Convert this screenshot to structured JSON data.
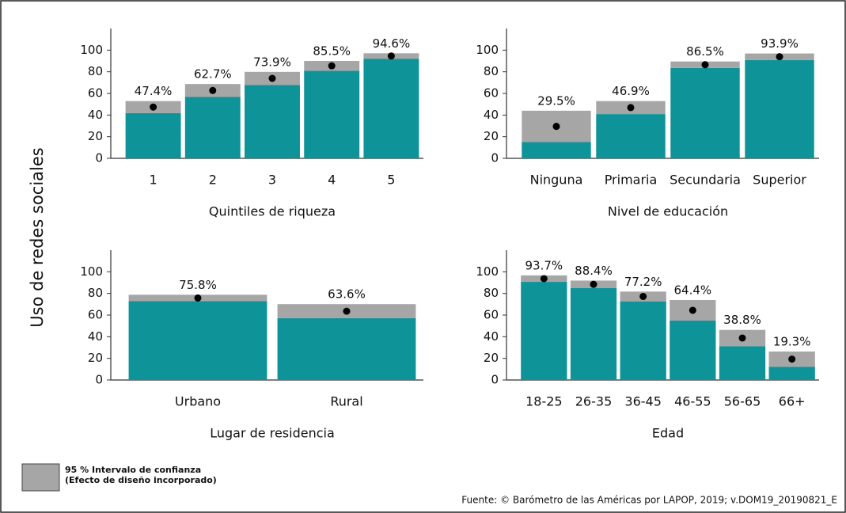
{
  "ylabel": "Uso de redes sociales",
  "legend": [
    "95 % Intervalo de confianza",
    "(Efecto de diseño incorporado)"
  ],
  "source": "Fuente: © Barómetro de las Américas por LAPOP, 2019; v.DOM19_20190821_E",
  "bar_color": "#0e9399",
  "interval_color": "#a6a6a6",
  "chart_data": [
    {
      "type": "bar",
      "xlabel": "Quintiles de riqueza",
      "categories": [
        "1",
        "2",
        "3",
        "4",
        "5"
      ],
      "values": [
        47.4,
        62.7,
        73.9,
        85.5,
        94.6
      ],
      "value_labels": [
        "47.4%",
        "62.7%",
        "73.9%",
        "85.5%",
        "94.6%"
      ],
      "errors": [
        5.5,
        6,
        6,
        4.5,
        2.5
      ],
      "ylim": [
        0,
        120
      ],
      "yticks": [
        0,
        20,
        40,
        60,
        80,
        100
      ]
    },
    {
      "type": "bar",
      "xlabel": "Nivel de educación",
      "categories": [
        "Ninguna",
        "Primaria",
        "Secundaria",
        "Superior"
      ],
      "values": [
        29.5,
        46.9,
        86.5,
        93.9
      ],
      "value_labels": [
        "29.5%",
        "46.9%",
        "86.5%",
        "93.9%"
      ],
      "errors": [
        14.5,
        6,
        3,
        3
      ],
      "ylim": [
        0,
        120
      ],
      "yticks": [
        0,
        20,
        40,
        60,
        80,
        100
      ]
    },
    {
      "type": "bar",
      "xlabel": "Lugar de residencia",
      "categories": [
        "Urbano",
        "Rural"
      ],
      "values": [
        75.8,
        63.6
      ],
      "value_labels": [
        "75.8%",
        "63.6%"
      ],
      "errors": [
        3,
        6.5
      ],
      "ylim": [
        0,
        120
      ],
      "yticks": [
        0,
        20,
        40,
        60,
        80,
        100
      ]
    },
    {
      "type": "bar",
      "xlabel": "Edad",
      "categories": [
        "18-25",
        "26-35",
        "36-45",
        "46-55",
        "56-65",
        "66+"
      ],
      "values": [
        93.7,
        88.4,
        77.2,
        64.4,
        38.8,
        19.3
      ],
      "value_labels": [
        "93.7%",
        "88.4%",
        "77.2%",
        "64.4%",
        "38.8%",
        "19.3%"
      ],
      "errors": [
        3,
        3.5,
        4.5,
        9.5,
        7.5,
        7
      ],
      "ylim": [
        0,
        120
      ],
      "yticks": [
        0,
        20,
        40,
        60,
        80,
        100
      ]
    }
  ]
}
